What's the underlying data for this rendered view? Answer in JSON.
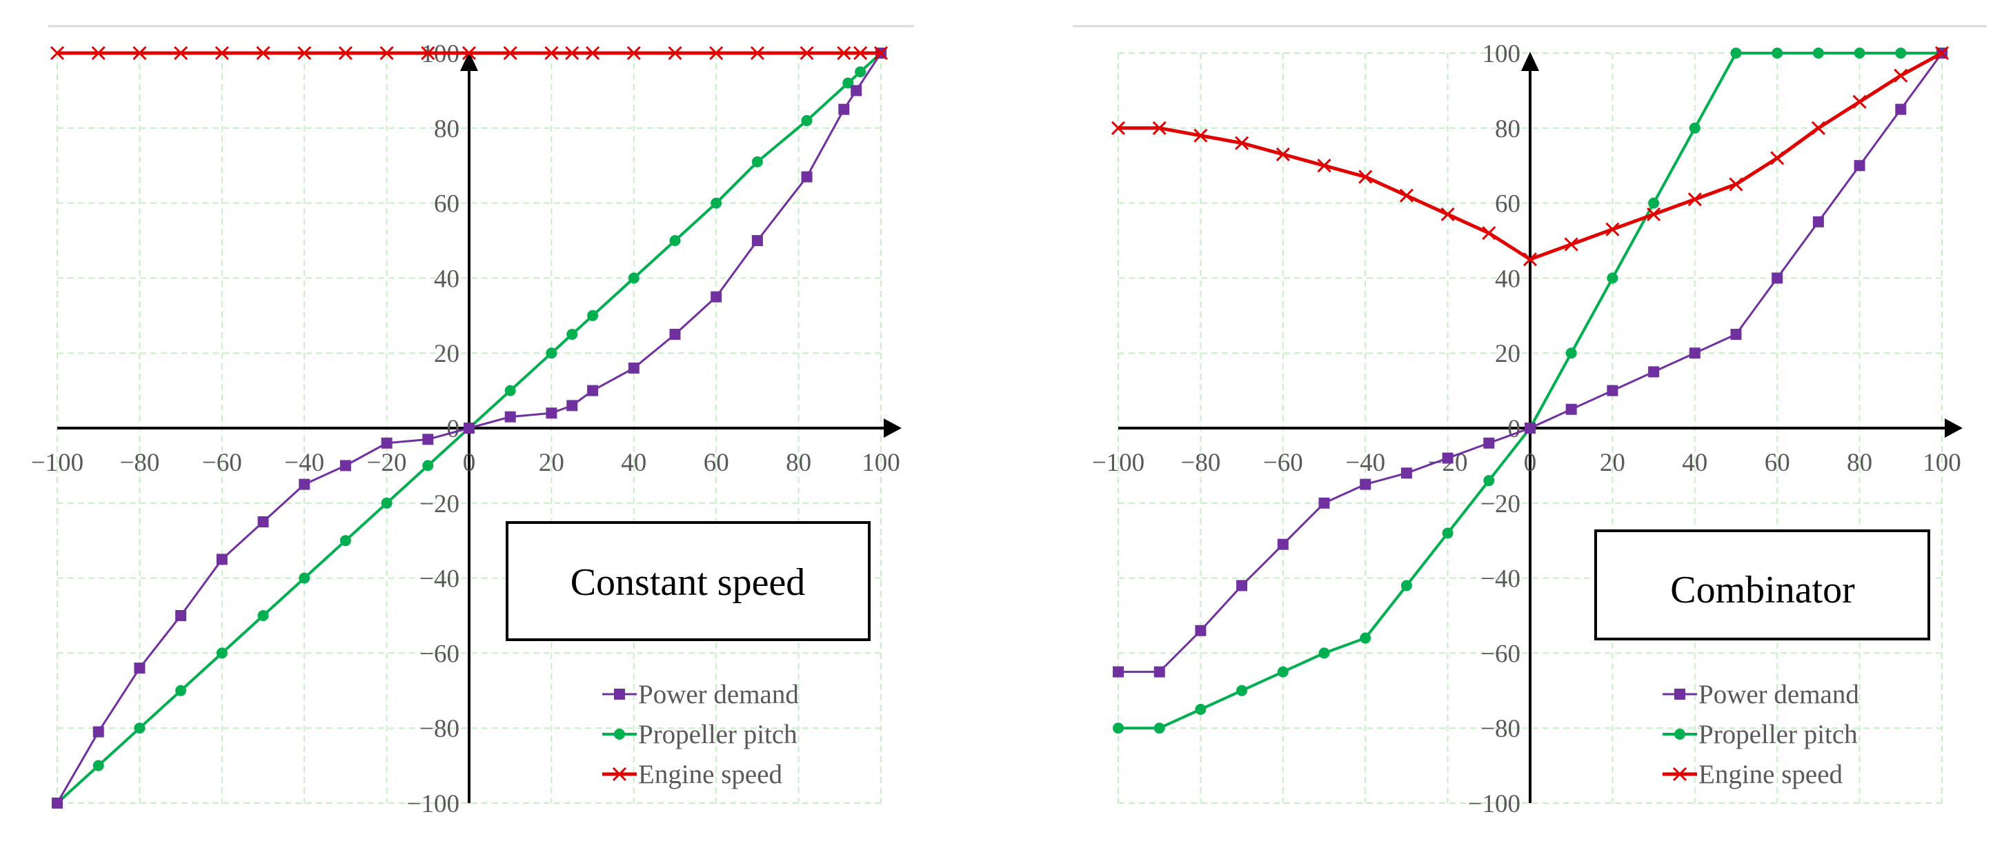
{
  "colors": {
    "power": "#7030A0",
    "pitch": "#00B050",
    "engine": "#E00000",
    "grid": "#C6EFC6",
    "axis": "#000000",
    "tick_text": "#595959"
  },
  "chart_data": [
    {
      "type": "line",
      "box_label": "Constant speed",
      "xlim": [
        -100,
        100
      ],
      "ylim": [
        -100,
        100
      ],
      "grid": true,
      "legend_position": "bottom-right",
      "x_ticks": [
        "−100",
        "−80",
        "−60",
        "−40",
        "−20",
        "0",
        "20",
        "40",
        "60",
        "80",
        "100"
      ],
      "y_ticks": [
        "100",
        "80",
        "60",
        "40",
        "20",
        "0",
        "−20",
        "−40",
        "−60",
        "−80",
        "−100"
      ],
      "series": [
        {
          "name": "Power demand",
          "marker": "square",
          "x": [
            -100,
            -90,
            -80,
            -70,
            -60,
            -50,
            -40,
            -30,
            -20,
            -10,
            0,
            10,
            20,
            25,
            30,
            40,
            50,
            60,
            70,
            82,
            91,
            94,
            100
          ],
          "y": [
            -100,
            -81,
            -64,
            -50,
            -35,
            -25,
            -15,
            -10,
            -4,
            -3,
            0,
            3,
            4,
            6,
            10,
            16,
            25,
            35,
            50,
            67,
            85,
            90,
            100
          ]
        },
        {
          "name": "Propeller pitch",
          "marker": "circle",
          "x": [
            -100,
            -90,
            -80,
            -70,
            -60,
            -50,
            -40,
            -30,
            -20,
            -10,
            0,
            10,
            20,
            25,
            30,
            40,
            50,
            60,
            70,
            82,
            92,
            95,
            100
          ],
          "y": [
            -100,
            -90,
            -80,
            -70,
            -60,
            -50,
            -40,
            -30,
            -20,
            -10,
            0,
            10,
            20,
            25,
            30,
            40,
            50,
            60,
            71,
            82,
            92,
            95,
            100
          ]
        },
        {
          "name": "Engine speed",
          "marker": "x",
          "x": [
            -100,
            -90,
            -80,
            -70,
            -60,
            -50,
            -40,
            -30,
            -20,
            -10,
            0,
            10,
            20,
            25,
            30,
            40,
            50,
            60,
            70,
            82,
            91,
            95,
            100
          ],
          "y": [
            100,
            100,
            100,
            100,
            100,
            100,
            100,
            100,
            100,
            100,
            100,
            100,
            100,
            100,
            100,
            100,
            100,
            100,
            100,
            100,
            100,
            100,
            100
          ]
        }
      ]
    },
    {
      "type": "line",
      "box_label": "Combinator",
      "xlim": [
        -100,
        100
      ],
      "ylim": [
        -100,
        100
      ],
      "grid": true,
      "legend_position": "bottom-right",
      "x_ticks": [
        "−100",
        "−80",
        "−60",
        "−40",
        "−20",
        "0",
        "20",
        "40",
        "60",
        "80",
        "100"
      ],
      "y_ticks": [
        "100",
        "80",
        "60",
        "40",
        "20",
        "0",
        "−20",
        "−40",
        "−60",
        "−80",
        "−100"
      ],
      "series": [
        {
          "name": "Power demand",
          "marker": "square",
          "x": [
            -100,
            -90,
            -80,
            -70,
            -60,
            -50,
            -40,
            -30,
            -20,
            -10,
            0,
            10,
            20,
            30,
            40,
            50,
            60,
            70,
            80,
            90,
            100
          ],
          "y": [
            -65,
            -65,
            -54,
            -42,
            -31,
            -20,
            -15,
            -12,
            -8,
            -4,
            0,
            5,
            10,
            15,
            20,
            25,
            40,
            55,
            70,
            85,
            100
          ]
        },
        {
          "name": "Propeller pitch",
          "marker": "circle",
          "x": [
            -100,
            -90,
            -80,
            -70,
            -60,
            -50,
            -40,
            -30,
            -20,
            -10,
            0,
            10,
            20,
            30,
            40,
            50,
            60,
            70,
            80,
            90,
            100
          ],
          "y": [
            -80,
            -80,
            -75,
            -70,
            -65,
            -60,
            -56,
            -42,
            -28,
            -14,
            0,
            20,
            40,
            60,
            80,
            100,
            100,
            100,
            100,
            100,
            100
          ]
        },
        {
          "name": "Engine speed",
          "marker": "x",
          "x": [
            -100,
            -90,
            -80,
            -70,
            -60,
            -50,
            -40,
            -30,
            -20,
            -10,
            0,
            10,
            20,
            30,
            40,
            50,
            60,
            70,
            80,
            90,
            100
          ],
          "y": [
            80,
            80,
            78,
            76,
            73,
            70,
            67,
            62,
            57,
            52,
            45,
            49,
            53,
            57,
            61,
            65,
            72,
            80,
            87,
            94,
            100
          ]
        }
      ]
    }
  ]
}
